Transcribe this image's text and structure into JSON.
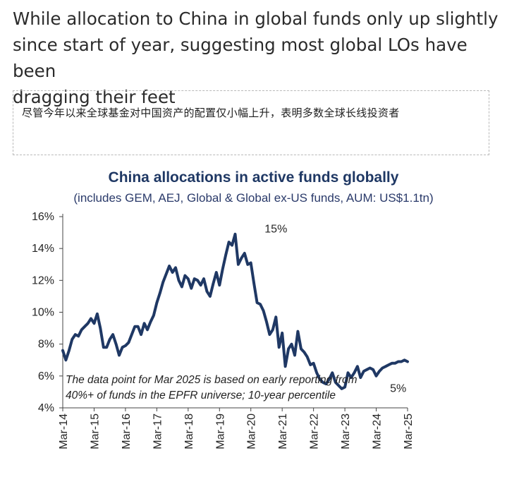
{
  "headline": {
    "line1": "While allocation to China in global funds only up slightly",
    "line2": "since start of year, suggesting most global LOs have been",
    "line3": "dragging their feet"
  },
  "chinese_subtitle": "尽管今年以来全球基金对中国资产的配置仅小幅上升，表明多数全球长线投资者",
  "colors": {
    "line": "#1f3864",
    "title": "#1f3864"
  },
  "chart_data": {
    "type": "line",
    "title": "China allocations in active funds globally",
    "subtitle": "(includes GEM, AEJ, Global & Global ex-US  funds, AUM:  US$1.1tn)",
    "xlabel": "",
    "ylabel": "",
    "ylim": [
      4,
      16
    ],
    "y_ticks": [
      "16%",
      "14%",
      "12%",
      "10%",
      "8%",
      "6%",
      "4%"
    ],
    "x_ticks": [
      "Mar-14",
      "Mar-15",
      "Mar-16",
      "Mar-17",
      "Mar-18",
      "Mar-19",
      "Mar-20",
      "Mar-21",
      "Mar-22",
      "Mar-23",
      "Mar-24",
      "Mar-25"
    ],
    "grid": false,
    "legend": "none",
    "series": [
      {
        "name": "",
        "x": [
          0,
          0.1,
          0.2,
          0.3,
          0.4,
          0.5,
          0.6,
          0.7,
          0.8,
          0.9,
          1,
          1.1,
          1.2,
          1.3,
          1.4,
          1.5,
          1.6,
          1.7,
          1.8,
          1.9,
          2,
          2.1,
          2.2,
          2.3,
          2.4,
          2.5,
          2.6,
          2.7,
          2.8,
          2.9,
          3,
          3.1,
          3.2,
          3.3,
          3.4,
          3.5,
          3.6,
          3.7,
          3.8,
          3.9,
          4,
          4.1,
          4.2,
          4.3,
          4.4,
          4.5,
          4.6,
          4.7,
          4.8,
          4.9,
          5,
          5.1,
          5.2,
          5.3,
          5.4,
          5.5,
          5.6,
          5.7,
          5.8,
          5.9,
          6,
          6.1,
          6.2,
          6.3,
          6.4,
          6.5,
          6.6,
          6.7,
          6.8,
          6.9,
          7,
          7.1,
          7.2,
          7.3,
          7.4,
          7.5,
          7.6,
          7.7,
          7.8,
          7.9,
          8,
          8.1,
          8.2,
          8.3,
          8.4,
          8.5,
          8.6,
          8.7,
          8.8,
          8.9,
          9,
          9.1,
          9.2,
          9.3,
          9.4,
          9.5,
          9.6,
          9.7,
          9.8,
          9.9,
          10,
          10.1,
          10.2,
          10.3,
          10.4,
          10.5,
          10.6,
          10.7,
          10.8,
          10.9,
          11
        ],
        "values": [
          7.6,
          7.0,
          7.6,
          8.3,
          8.6,
          8.5,
          8.9,
          9.1,
          9.3,
          9.6,
          9.3,
          9.9,
          9.0,
          7.8,
          7.8,
          8.3,
          8.6,
          8.0,
          7.3,
          7.8,
          7.9,
          8.1,
          8.6,
          9.1,
          9.1,
          8.6,
          9.3,
          8.9,
          9.4,
          9.8,
          10.6,
          11.2,
          11.9,
          12.4,
          12.9,
          12.5,
          12.8,
          12.0,
          11.6,
          12.3,
          12.1,
          11.5,
          12.1,
          12.0,
          11.7,
          12.1,
          11.3,
          11.0,
          11.8,
          12.5,
          11.7,
          12.7,
          13.6,
          14.4,
          14.2,
          14.9,
          13.0,
          13.4,
          13.7,
          13.0,
          13.1,
          11.8,
          10.6,
          10.5,
          10.1,
          9.4,
          8.6,
          8.9,
          9.7,
          7.8,
          8.7,
          6.6,
          7.7,
          8.0,
          7.3,
          8.8,
          7.7,
          7.5,
          7.2,
          6.7,
          6.8,
          6.2,
          5.8,
          5.6,
          5.5,
          5.8,
          6.2,
          5.6,
          5.4,
          5.2,
          5.3,
          6.2,
          5.9,
          6.2,
          6.6,
          5.9,
          6.3,
          6.4,
          6.5,
          6.4,
          6.0,
          6.3,
          6.5,
          6.6,
          6.7,
          6.8,
          6.8,
          6.9,
          6.9,
          7.0,
          6.9
        ]
      }
    ],
    "labels": [
      {
        "text": "15%",
        "x": 6.8,
        "y": 15
      },
      {
        "text": "5%",
        "x": 10.7,
        "y": 5
      }
    ],
    "annotation": {
      "line1": "The data point for Mar 2025 is based on early reporting from",
      "line2": "40%+ of funds in the EPFR universe; 10-year percentile"
    }
  }
}
